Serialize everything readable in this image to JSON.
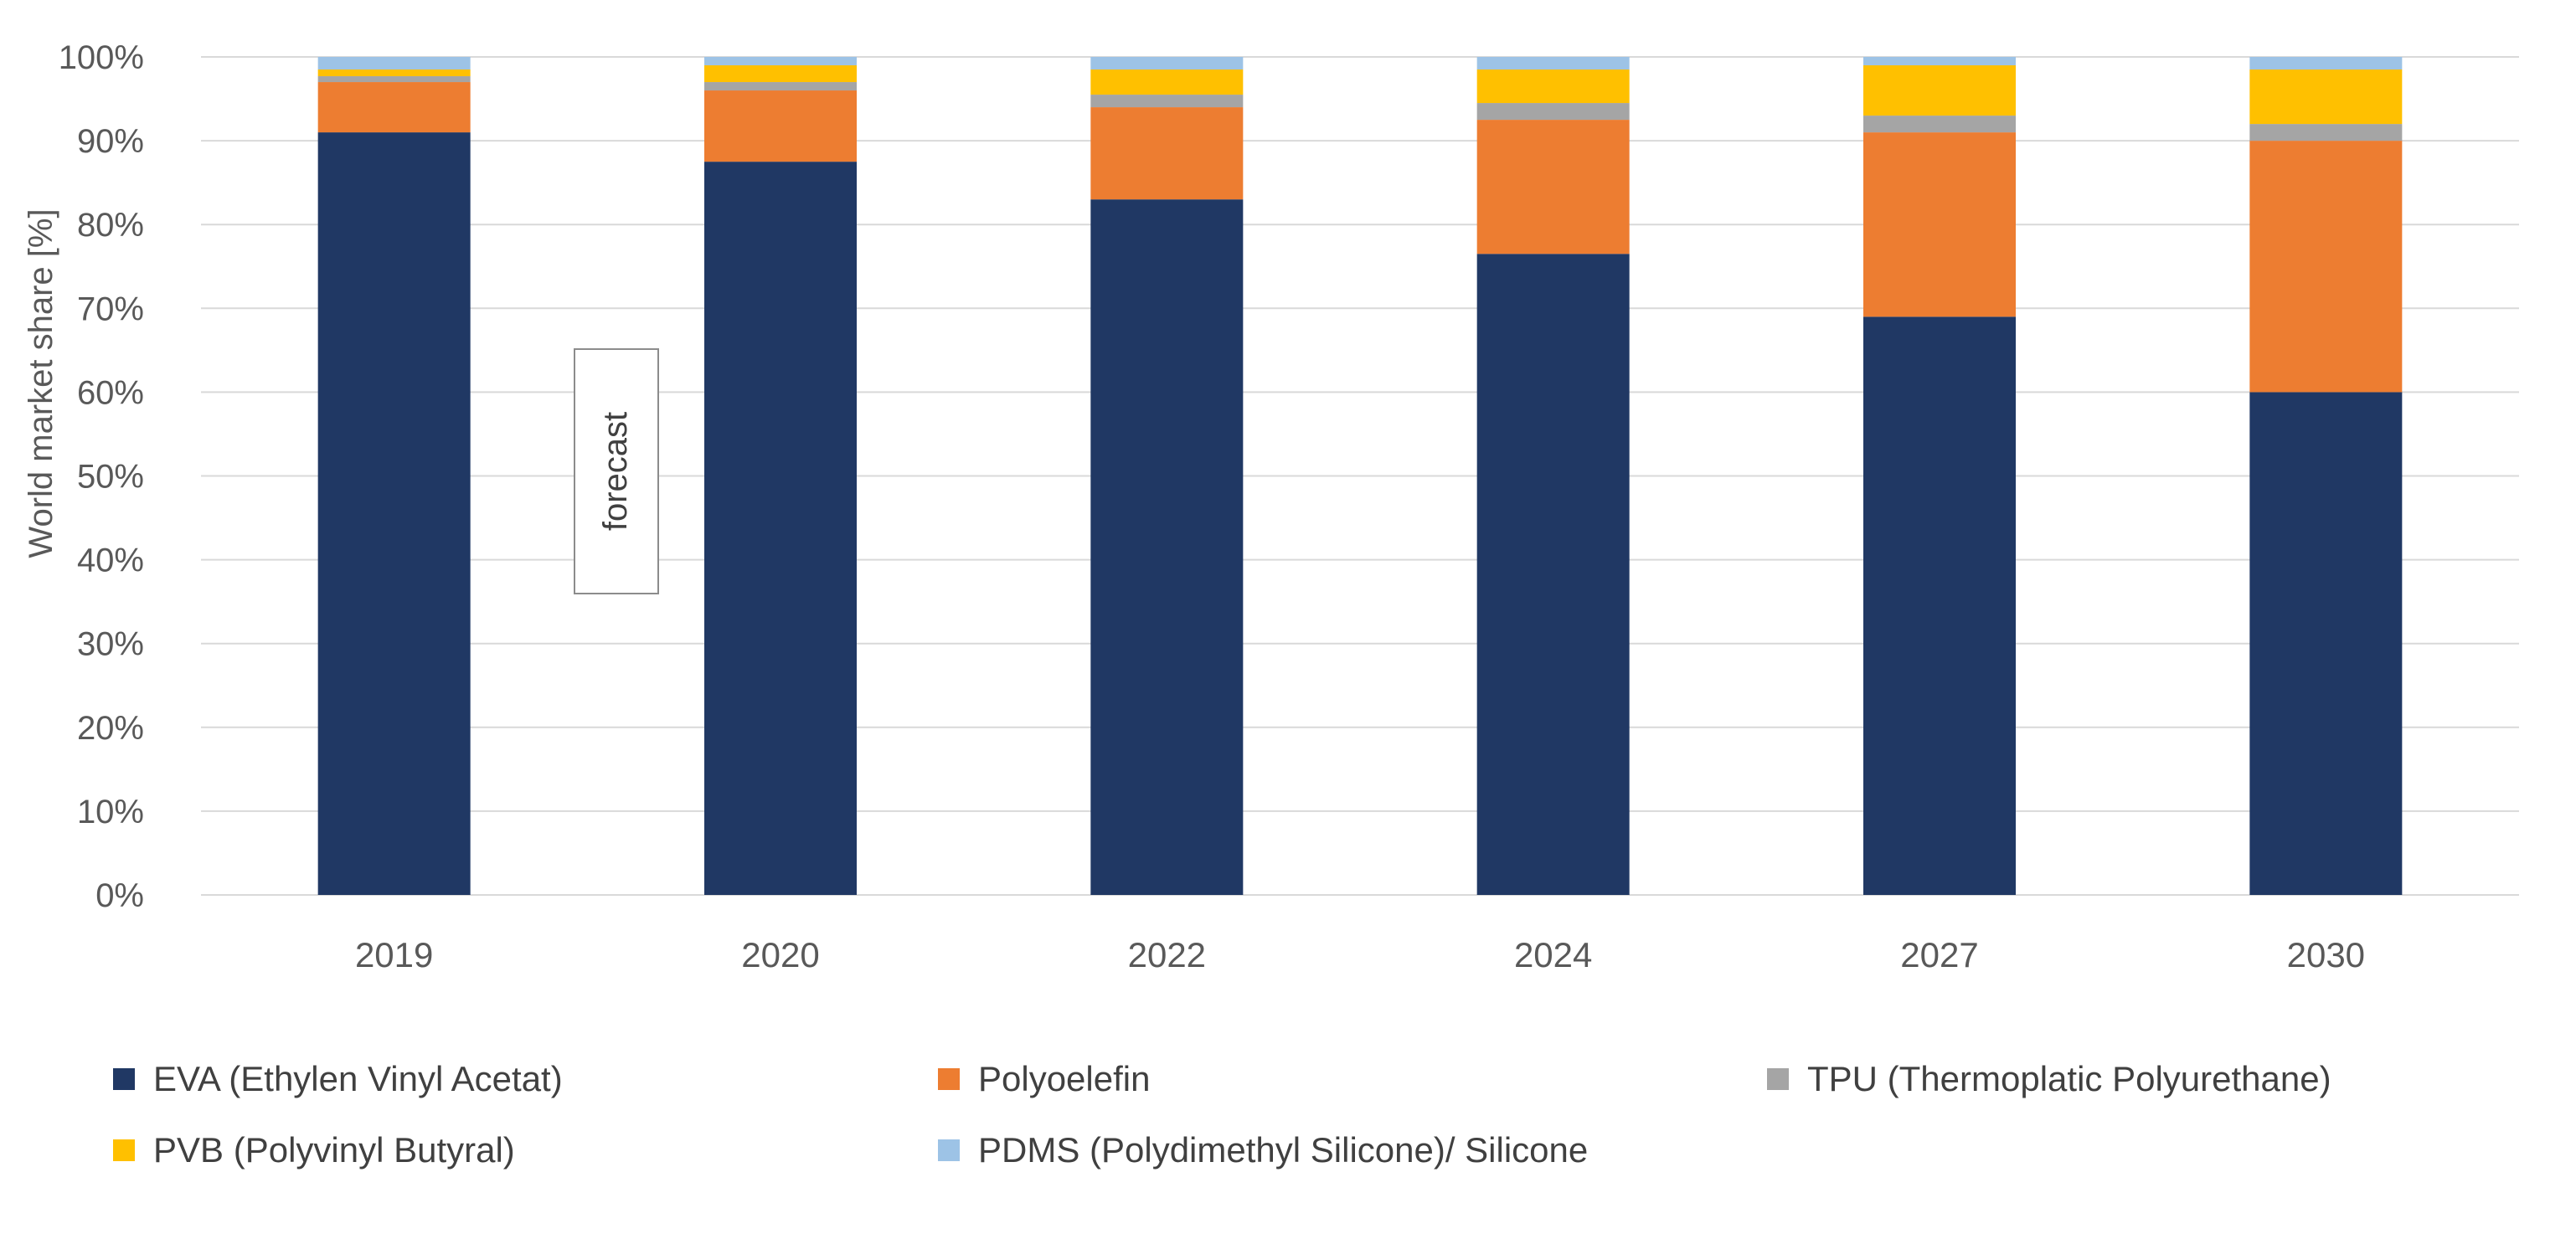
{
  "chart_data": {
    "type": "bar",
    "stacked": true,
    "title": "",
    "xlabel": "",
    "ylabel": "World market share [%]",
    "ylim": [
      0,
      100
    ],
    "yticks": [
      "0%",
      "10%",
      "20%",
      "30%",
      "40%",
      "50%",
      "60%",
      "70%",
      "80%",
      "90%",
      "100%"
    ],
    "categories": [
      "2019",
      "2020",
      "2022",
      "2024",
      "2027",
      "2030"
    ],
    "series": [
      {
        "name": "EVA (Ethylen Vinyl Acetat)",
        "color": "#203864",
        "values": [
          91,
          87.5,
          83,
          76.5,
          69,
          60
        ]
      },
      {
        "name": "Polyoelefin",
        "color": "#ED7D31",
        "values": [
          6,
          8.5,
          11,
          16,
          22,
          30
        ]
      },
      {
        "name": "TPU (Thermoplatic Polyurethane)",
        "color": "#A5A5A5",
        "values": [
          0.7,
          1,
          1.5,
          2,
          2,
          2
        ]
      },
      {
        "name": "PVB (Polyvinyl Butyral)",
        "color": "#FFC000",
        "values": [
          0.8,
          2,
          3,
          4,
          6,
          6.5
        ]
      },
      {
        "name": "PDMS (Polydimethyl Silicone)/ Silicone",
        "color": "#9DC3E6",
        "values": [
          1.5,
          1,
          1.5,
          1.5,
          1,
          1.5
        ]
      }
    ],
    "annotations": [
      {
        "text": "forecast",
        "orientation": "vertical"
      }
    ],
    "grid": true,
    "legend_position": "bottom"
  }
}
